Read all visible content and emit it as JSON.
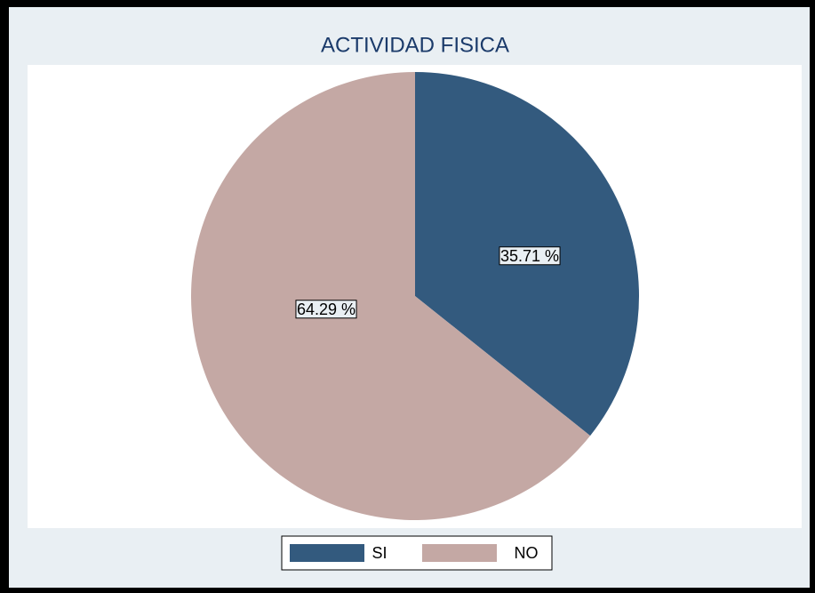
{
  "chart_data": {
    "type": "pie",
    "title": "ACTIVIDAD FISICA",
    "categories": [
      "SI",
      "NO"
    ],
    "values": [
      35.71,
      64.29
    ],
    "value_labels": [
      "35.71 %",
      "64.29 %"
    ],
    "colors": [
      "#335a7e",
      "#c4a8a4"
    ],
    "legend": "bottom"
  }
}
